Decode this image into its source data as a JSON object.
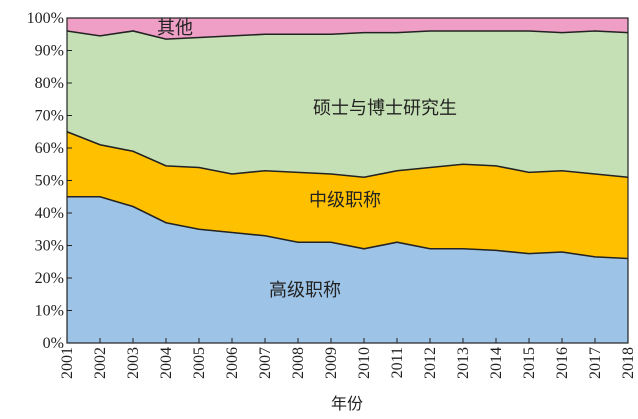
{
  "chart_data": {
    "type": "stacked_area",
    "x_label": "年份",
    "categories": [
      "2001",
      "2002",
      "2003",
      "2004",
      "2005",
      "2006",
      "2007",
      "2008",
      "2009",
      "2010",
      "2011",
      "2012",
      "2013",
      "2014",
      "2015",
      "2016",
      "2017",
      "2018"
    ],
    "series": [
      {
        "name": "高级职称",
        "color": "#9dc3e6",
        "values": [
          45,
          45,
          42,
          37,
          35,
          34,
          33,
          31,
          31,
          29,
          31,
          29,
          29,
          28.5,
          27.5,
          28,
          26.5,
          26
        ]
      },
      {
        "name": "中级职称",
        "color": "#ffc000",
        "values": [
          20,
          16,
          17,
          17.5,
          19,
          18,
          20,
          21.5,
          21,
          22,
          22,
          25,
          26,
          26,
          25,
          25,
          25.5,
          25
        ]
      },
      {
        "name": "硕士与博士研究生",
        "color": "#c5e0b4",
        "values": [
          31,
          33.5,
          37,
          39,
          40,
          42.5,
          42,
          42.5,
          43,
          44.5,
          42.5,
          42,
          41,
          41.5,
          43.5,
          42.5,
          44,
          44.5
        ]
      },
      {
        "name": "其他",
        "color": "#ef9fc6",
        "values": [
          4,
          5.5,
          4,
          6.5,
          6,
          5.5,
          5,
          5,
          5,
          4.5,
          4.5,
          4,
          4,
          4,
          4,
          4.5,
          4,
          4.5
        ]
      }
    ],
    "ylim": [
      0,
      100
    ],
    "yticks": [
      {
        "value": 0,
        "label": "0%"
      },
      {
        "value": 10,
        "label": "10%"
      },
      {
        "value": 20,
        "label": "20%"
      },
      {
        "value": 30,
        "label": "30%"
      },
      {
        "value": 40,
        "label": "40%"
      },
      {
        "value": 50,
        "label": "50%"
      },
      {
        "value": 60,
        "label": "60%"
      },
      {
        "value": 70,
        "label": "70%"
      },
      {
        "value": 80,
        "label": "80%"
      },
      {
        "value": 90,
        "label": "90%"
      },
      {
        "value": 100,
        "label": "100%"
      }
    ]
  }
}
